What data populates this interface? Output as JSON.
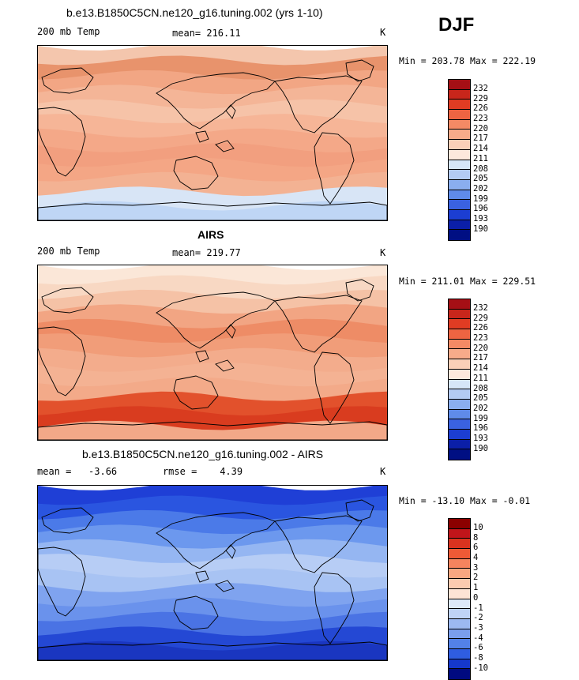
{
  "season": "DJF",
  "panels": [
    {
      "title": "b.e13.B1850C5CN.ne120_g16.tuning.002 (yrs 1-10)",
      "variable": "200 mb Temp",
      "stat": "mean= 216.11",
      "units": "K",
      "minmax": "Min = 203.78 Max = 222.19",
      "colorbar_labels": [
        "232",
        "229",
        "226",
        "223",
        "220",
        "217",
        "214",
        "211",
        "208",
        "205",
        "202",
        "199",
        "196",
        "193",
        "190"
      ],
      "bands": [
        "#f4c6ad",
        "#e8936c",
        "#f2a684",
        "#f4b597",
        "#f6c3a8",
        "#f6b597",
        "#f4a888",
        "#f29f7f",
        "#f4a685",
        "#f3b293",
        "#d8e5f6",
        "#bfd6f5"
      ]
    },
    {
      "title": "AIRS",
      "variable": "200 mb Temp",
      "stat": "mean= 219.77",
      "units": "K",
      "minmax": "Min = 211.01 Max = 229.51",
      "colorbar_labels": [
        "232",
        "229",
        "226",
        "223",
        "220",
        "217",
        "214",
        "211",
        "208",
        "205",
        "202",
        "199",
        "196",
        "193",
        "190"
      ],
      "bands": [
        "#fbe7d8",
        "#f8d8c3",
        "#f5c2a6",
        "#f2a583",
        "#ee8c66",
        "#f19d79",
        "#f3ac8c",
        "#f4b293",
        "#f3aa89",
        "#e2512c",
        "#d93c1f",
        "#f2a888"
      ]
    },
    {
      "title": "b.e13.B1850C5CN.ne120_g16.tuning.002 - AIRS",
      "variable": "",
      "stat": "mean =   -3.66        rmse =    4.39",
      "units": "K",
      "minmax": "Min = -13.10 Max =  -0.01",
      "colorbar_labels": [
        "10",
        "8",
        "6",
        "4",
        "3",
        "2",
        "1",
        "0",
        "-1",
        "-2",
        "-3",
        "-4",
        "-6",
        "-8",
        "-10"
      ],
      "bands": [
        "#1f3fd6",
        "#2a55e0",
        "#4b7ae8",
        "#6c98ee",
        "#95b6f2",
        "#b7cdf5",
        "#a8c3f3",
        "#7fa3ef",
        "#6a92ec",
        "#4a73e4",
        "#2448d4",
        "#1a36c0"
      ]
    }
  ],
  "colorbar_colors": [
    "#a50f15",
    "#c8261b",
    "#e03c23",
    "#ee6442",
    "#f48a65",
    "#f7ab8a",
    "#fad0b8",
    "#fde8dc",
    "#d6e6f7",
    "#b3cbf3",
    "#8aaeef",
    "#5f8be9",
    "#3a62e0",
    "#1c3ed2",
    "#0b1fa8",
    "#000f83"
  ],
  "diff_colorbar_colors": [
    "#8b0000",
    "#c0151a",
    "#d9331f",
    "#ee5a36",
    "#f5845e",
    "#f8a781",
    "#fbcbb0",
    "#fde4d5",
    "#dde9f8",
    "#bfd3f5",
    "#9cb9f1",
    "#7a9eed",
    "#5381e7",
    "#2f5de0",
    "#1538cc",
    "#000a80"
  ],
  "continents_color": "#000000"
}
